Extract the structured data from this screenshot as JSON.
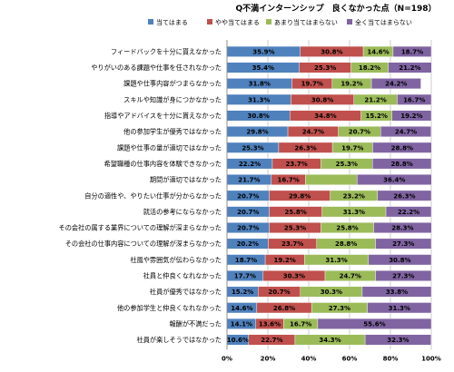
{
  "chart_data": {
    "type": "bar",
    "orientation": "horizontal",
    "stacked": true,
    "title": "Q不満インターンシップ　良くなかった点（N=198）",
    "legend_position": "top",
    "grid": true,
    "xlim": [
      0,
      100
    ],
    "x_ticks": [
      "0%",
      "20%",
      "40%",
      "60%",
      "80%",
      "100%"
    ],
    "categories": [
      "フィードバックを十分に貰えなかった",
      "やりがいのある課題や仕事を任されなかった",
      "課題や仕事内容がつまらなかった",
      "スキルや知識が身につかなかった",
      "指導やアドバイスを十分に貰えなかった",
      "他の参加学生が優秀ではなかった",
      "課題や仕事の量が適切ではなかった",
      "希望職種の仕事内容を体験できなかった",
      "期間が適切ではなかった",
      "自分の適性や、やりたい仕事が分からなかった",
      "就活の参考にならなかった",
      "その会社の属する業界についての理解が深まらなかった",
      "その会社の仕事内容についての理解が深まらなかった",
      "社風や雰囲気が伝わらなかった",
      "社員と仲良くなれなかった",
      "社員が優秀ではなかった",
      "他の参加学生と仲良くなれなかった",
      "報酬が不満だった",
      "社員が楽しそうではなかった"
    ],
    "series": [
      {
        "name": "当てはまる",
        "color": "#4f81bd",
        "values": [
          35.9,
          35.4,
          31.8,
          31.3,
          30.8,
          29.8,
          25.3,
          22.2,
          21.7,
          20.7,
          20.7,
          20.7,
          20.2,
          18.7,
          17.7,
          15.2,
          14.6,
          14.1,
          10.6
        ],
        "labels": [
          "35.9%",
          "35.4%",
          "31.8%",
          "31.3%",
          "30.8%",
          "29.8%",
          "25.3%",
          "22.2%",
          "21.7%",
          "20.7%",
          "20.7%",
          "20.7%",
          "20.2%",
          "18.7%",
          "17.7%",
          "15.2%",
          "14.6%",
          "14.1%",
          "10.6%"
        ]
      },
      {
        "name": "やや当てはまる",
        "color": "#c0504d",
        "values": [
          30.8,
          25.3,
          19.7,
          30.8,
          34.8,
          24.7,
          26.3,
          23.7,
          16.7,
          29.8,
          25.8,
          25.3,
          23.7,
          19.2,
          30.3,
          20.7,
          26.8,
          13.6,
          22.7
        ],
        "labels": [
          "30.8%",
          "25.3%",
          "19.7%",
          "30.8%",
          "34.8%",
          "24.7%",
          "26.3%",
          "23.7%",
          "16.7%",
          "29.8%",
          "25.8%",
          "25.3%",
          "23.7%",
          "19.2%",
          "30.3%",
          "20.7%",
          "26.8%",
          "13.6%",
          "22.7%"
        ]
      },
      {
        "name": "あまり当てはまらない",
        "color": "#9bbb59",
        "values": [
          14.6,
          18.2,
          19.2,
          21.2,
          15.2,
          20.7,
          19.7,
          25.3,
          25.3,
          23.2,
          31.3,
          25.8,
          28.8,
          31.3,
          24.7,
          30.3,
          27.3,
          16.7,
          34.3
        ],
        "labels": [
          "14.6%",
          "18.2%",
          "19.2%",
          "21.2%",
          "15.2%",
          "20.7%",
          "19.7%",
          "25.3%",
          "",
          "23.2%",
          "31.3%",
          "25.8%",
          "28.8%",
          "31.3%",
          "24.7%",
          "30.3%",
          "27.3%",
          "16.7%",
          "34.3%"
        ]
      },
      {
        "name": "全く当てはまらない",
        "color": "#8064a2",
        "values": [
          18.7,
          21.2,
          24.2,
          16.7,
          19.2,
          24.7,
          28.8,
          28.8,
          36.4,
          26.3,
          22.2,
          28.3,
          27.3,
          30.8,
          27.3,
          33.8,
          31.3,
          55.6,
          32.3
        ],
        "labels": [
          "18.7%",
          "21.2%",
          "24.2%",
          "16.7%",
          "19.2%",
          "24.7%",
          "28.8%",
          "28.8%",
          "36.4%",
          "26.3%",
          "22.2%",
          "28.3%",
          "27.3%",
          "30.8%",
          "27.3%",
          "33.8%",
          "31.3%",
          "55.6%",
          "32.3%"
        ]
      }
    ]
  }
}
